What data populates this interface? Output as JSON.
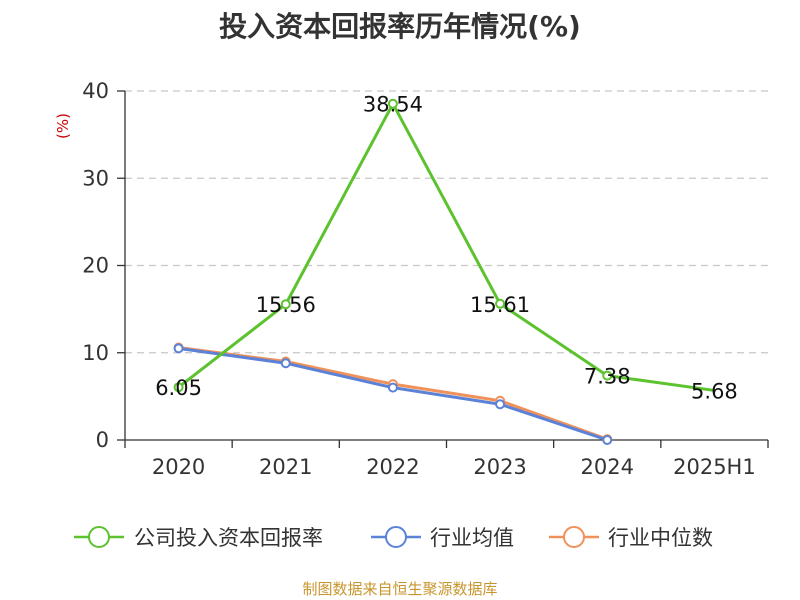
{
  "chart_data": {
    "type": "line",
    "title": "投入资本回报率历年情况(%)",
    "ylabel": "(%)",
    "categories": [
      "2020",
      "2021",
      "2022",
      "2023",
      "2024",
      "2025H1"
    ],
    "ylim": [
      0,
      40
    ],
    "yticks": [
      0,
      10,
      20,
      30,
      40
    ],
    "grid": true,
    "legend_position": "bottom",
    "series": [
      {
        "name": "公司投入资本回报率",
        "color": "#5cc22e",
        "values": [
          6.05,
          15.56,
          38.54,
          15.61,
          7.38,
          5.68
        ],
        "labels": [
          "6.05",
          "15.56",
          "38.54",
          "15.61",
          "7.38",
          "5.68"
        ]
      },
      {
        "name": "行业均值",
        "color": "#5b82d6",
        "values": [
          10.5,
          8.8,
          6.0,
          4.1,
          0.0,
          null
        ]
      },
      {
        "name": "行业中位数",
        "color": "#f0915a",
        "values": [
          10.6,
          9.0,
          6.4,
          4.5,
          0.1,
          null
        ]
      }
    ],
    "source": "制图数据来自恒生聚源数据库"
  }
}
